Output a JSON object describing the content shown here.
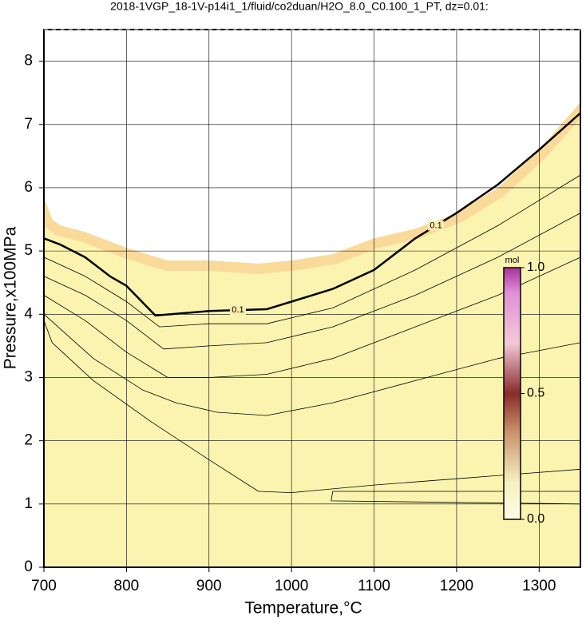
{
  "chart_data": {
    "type": "contour",
    "title": "2018-1VGP_18-1V-p14i1_1/fluid/co2duan/H2O_8.0_C0.100_1_PT, dz=0.01:",
    "x_label": "Temperature,°C",
    "y_label": "Pressure,x100MPa",
    "xlim": [
      700,
      1350
    ],
    "ylim": [
      0,
      8.5
    ],
    "xticks": [
      700,
      800,
      900,
      1000,
      1100,
      1200,
      1300
    ],
    "yticks": [
      0,
      1,
      2,
      3,
      4,
      5,
      6,
      7,
      8
    ],
    "grid": true,
    "field_boundary": {
      "color": "#fbf3b0",
      "x": [
        700,
        710,
        720,
        750,
        800,
        850,
        900,
        960,
        1000,
        1050,
        1100,
        1150,
        1200,
        1250,
        1300,
        1350
      ],
      "y": [
        5.85,
        5.5,
        5.4,
        5.3,
        5.05,
        4.85,
        4.85,
        4.8,
        4.85,
        4.95,
        5.2,
        5.35,
        5.6,
        6.0,
        6.6,
        7.35
      ]
    },
    "contours": [
      {
        "label": 0.1,
        "x": [
          700,
          720,
          750,
          780,
          800,
          835,
          900,
          970,
          1000,
          1050,
          1100,
          1150,
          1200,
          1250,
          1300,
          1350
        ],
        "y": [
          5.2,
          5.1,
          4.9,
          4.6,
          4.45,
          3.98,
          4.05,
          4.08,
          4.2,
          4.4,
          4.7,
          5.2,
          5.6,
          6.05,
          6.6,
          7.18
        ]
      },
      {
        "x": [
          700,
          750,
          800,
          840,
          900,
          970,
          1050,
          1150,
          1250,
          1350
        ],
        "y": [
          4.9,
          4.6,
          4.2,
          3.8,
          3.85,
          3.85,
          4.1,
          4.7,
          5.4,
          6.2
        ]
      },
      {
        "x": [
          700,
          750,
          800,
          845,
          900,
          970,
          1050,
          1150,
          1250,
          1350
        ],
        "y": [
          4.6,
          4.3,
          3.9,
          3.45,
          3.5,
          3.55,
          3.8,
          4.3,
          4.9,
          5.6
        ]
      },
      {
        "x": [
          700,
          750,
          800,
          850,
          900,
          970,
          1050,
          1150,
          1250,
          1350
        ],
        "y": [
          4.3,
          3.9,
          3.4,
          3.0,
          3.0,
          3.05,
          3.3,
          3.8,
          4.3,
          4.9
        ]
      },
      {
        "x": [
          700,
          760,
          820,
          860,
          910,
          970,
          1050,
          1150,
          1250,
          1350
        ],
        "y": [
          4.0,
          3.3,
          2.8,
          2.6,
          2.45,
          2.4,
          2.6,
          2.95,
          3.3,
          3.55
        ]
      },
      {
        "x": [
          700,
          710,
          760,
          830,
          900,
          960,
          1000,
          1100,
          1200,
          1350
        ],
        "y": [
          3.9,
          3.55,
          2.95,
          2.3,
          1.7,
          1.2,
          1.18,
          1.3,
          1.4,
          1.55
        ]
      },
      {
        "x": [
          1350,
          1050,
          1048,
          1350
        ],
        "y": [
          1.2,
          1.2,
          1.05,
          1.0
        ]
      }
    ],
    "colorbar": {
      "title": "mol",
      "lim": [
        0,
        1
      ],
      "ticks": [
        {
          "value": 0,
          "label": "0.0"
        },
        {
          "value": 0.5,
          "label": "0.5"
        },
        {
          "value": 1,
          "label": "1.0"
        }
      ]
    }
  }
}
